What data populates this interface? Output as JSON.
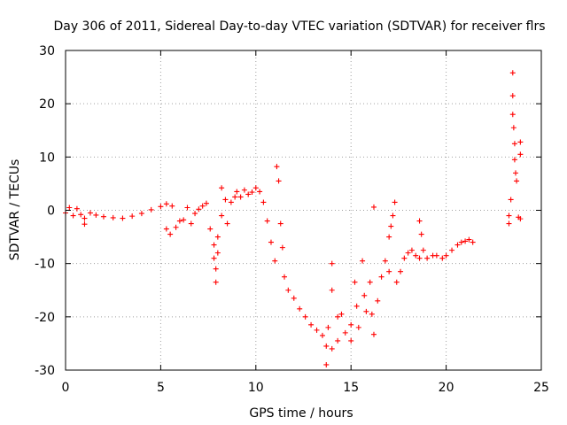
{
  "chart_data": {
    "type": "scatter",
    "title": "Day 306 of 2011, Sidereal Day-to-day VTEC variation (SDTVAR) for receiver flrs",
    "xlabel": "GPS time / hours",
    "ylabel": "SDTVAR / TECUs",
    "xlim": [
      0,
      25
    ],
    "ylim": [
      -30,
      30
    ],
    "xticks": [
      0,
      5,
      10,
      15,
      20,
      25
    ],
    "yticks": [
      -30,
      -20,
      -10,
      0,
      10,
      20,
      30
    ],
    "grid": true,
    "marker": "+",
    "color": "#ff0000",
    "series": [
      {
        "points": [
          [
            0.0,
            -0.5
          ],
          [
            0.2,
            0.5
          ],
          [
            0.4,
            -1.0
          ],
          [
            0.6,
            0.3
          ],
          [
            0.8,
            -0.8
          ],
          [
            1.0,
            -1.5
          ],
          [
            1.0,
            -2.6
          ],
          [
            1.3,
            -0.5
          ],
          [
            1.6,
            -0.9
          ],
          [
            2.0,
            -1.2
          ],
          [
            2.5,
            -1.4
          ],
          [
            3.0,
            -1.5
          ],
          [
            3.5,
            -1.1
          ],
          [
            4.0,
            -0.6
          ],
          [
            4.5,
            0.1
          ],
          [
            5.0,
            0.7
          ],
          [
            5.3,
            1.2
          ],
          [
            5.6,
            0.8
          ],
          [
            5.3,
            -3.5
          ],
          [
            5.5,
            -4.5
          ],
          [
            5.8,
            -3.2
          ],
          [
            6.0,
            -2.0
          ],
          [
            6.2,
            -1.8
          ],
          [
            6.4,
            0.5
          ],
          [
            6.6,
            -2.5
          ],
          [
            6.8,
            -0.6
          ],
          [
            7.0,
            0.2
          ],
          [
            7.2,
            0.8
          ],
          [
            7.4,
            1.3
          ],
          [
            7.6,
            -3.5
          ],
          [
            7.8,
            -6.5
          ],
          [
            7.8,
            -9.0
          ],
          [
            7.9,
            -11.0
          ],
          [
            7.9,
            -13.5
          ],
          [
            8.0,
            -8.0
          ],
          [
            8.0,
            -5.0
          ],
          [
            8.2,
            -1.0
          ],
          [
            8.2,
            4.2
          ],
          [
            8.4,
            2.0
          ],
          [
            8.5,
            -2.5
          ],
          [
            8.7,
            1.5
          ],
          [
            8.9,
            2.5
          ],
          [
            9.0,
            3.5
          ],
          [
            9.2,
            2.5
          ],
          [
            9.4,
            3.8
          ],
          [
            9.6,
            3.0
          ],
          [
            9.8,
            3.4
          ],
          [
            10.0,
            4.2
          ],
          [
            10.2,
            3.5
          ],
          [
            10.4,
            1.5
          ],
          [
            10.6,
            -2.0
          ],
          [
            10.8,
            -6.0
          ],
          [
            11.0,
            -9.5
          ],
          [
            11.1,
            8.2
          ],
          [
            11.2,
            5.5
          ],
          [
            11.3,
            -2.5
          ],
          [
            11.4,
            -7.0
          ],
          [
            11.5,
            -12.5
          ],
          [
            11.7,
            -15.0
          ],
          [
            12.0,
            -16.5
          ],
          [
            12.3,
            -18.5
          ],
          [
            12.6,
            -20.0
          ],
          [
            12.9,
            -21.5
          ],
          [
            13.2,
            -22.5
          ],
          [
            13.5,
            -23.5
          ],
          [
            13.7,
            -25.5
          ],
          [
            13.7,
            -29.0
          ],
          [
            13.8,
            -22.0
          ],
          [
            14.0,
            -10.0
          ],
          [
            14.0,
            -15.0
          ],
          [
            14.0,
            -26.0
          ],
          [
            14.3,
            -20.0
          ],
          [
            14.3,
            -24.5
          ],
          [
            14.5,
            -19.5
          ],
          [
            14.7,
            -23.0
          ],
          [
            15.0,
            -21.5
          ],
          [
            15.0,
            -24.5
          ],
          [
            15.2,
            -13.5
          ],
          [
            15.3,
            -18.0
          ],
          [
            15.4,
            -22.0
          ],
          [
            15.6,
            -9.5
          ],
          [
            15.7,
            -16.0
          ],
          [
            15.8,
            -19.0
          ],
          [
            16.0,
            -13.5
          ],
          [
            16.1,
            -19.5
          ],
          [
            16.2,
            -23.3
          ],
          [
            16.2,
            0.6
          ],
          [
            16.4,
            -17.0
          ],
          [
            16.6,
            -12.5
          ],
          [
            16.8,
            -9.5
          ],
          [
            17.0,
            -11.5
          ],
          [
            17.0,
            -5.0
          ],
          [
            17.1,
            -3.0
          ],
          [
            17.2,
            -1.0
          ],
          [
            17.3,
            1.5
          ],
          [
            17.4,
            -13.5
          ],
          [
            17.6,
            -11.5
          ],
          [
            17.8,
            -9.0
          ],
          [
            18.0,
            -8.0
          ],
          [
            18.2,
            -7.5
          ],
          [
            18.4,
            -8.5
          ],
          [
            18.6,
            -9.0
          ],
          [
            18.6,
            -2.0
          ],
          [
            18.7,
            -4.5
          ],
          [
            18.8,
            -7.5
          ],
          [
            19.0,
            -9.0
          ],
          [
            19.3,
            -8.5
          ],
          [
            19.5,
            -8.5
          ],
          [
            19.8,
            -9.0
          ],
          [
            20.0,
            -8.5
          ],
          [
            20.3,
            -7.5
          ],
          [
            20.6,
            -6.5
          ],
          [
            20.8,
            -6.0
          ],
          [
            21.0,
            -5.8
          ],
          [
            21.2,
            -5.5
          ],
          [
            21.4,
            -6.0
          ],
          [
            23.3,
            -1.0
          ],
          [
            23.3,
            -2.5
          ],
          [
            23.4,
            2.0
          ],
          [
            23.5,
            25.8
          ],
          [
            23.5,
            21.5
          ],
          [
            23.5,
            18.0
          ],
          [
            23.55,
            15.5
          ],
          [
            23.6,
            12.5
          ],
          [
            23.6,
            9.5
          ],
          [
            23.65,
            7.0
          ],
          [
            23.7,
            5.5
          ],
          [
            23.8,
            -1.3
          ],
          [
            23.9,
            -1.6
          ],
          [
            23.9,
            12.8
          ],
          [
            23.9,
            10.5
          ]
        ]
      }
    ]
  }
}
